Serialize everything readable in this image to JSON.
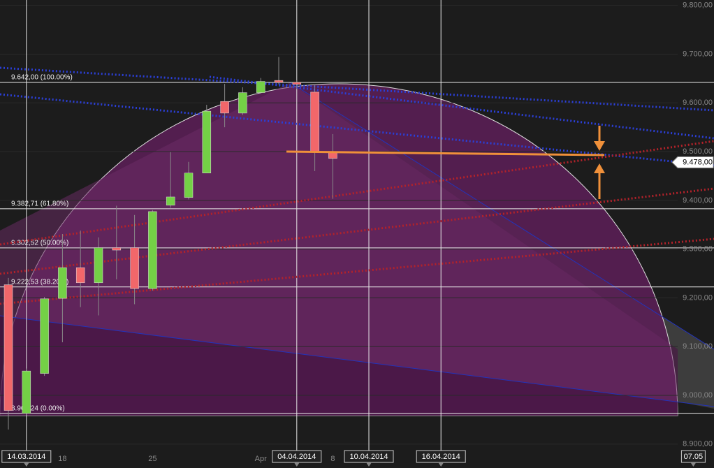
{
  "chart_data": {
    "type": "candlestick",
    "categories": [
      null,
      "14.03.2014",
      null,
      "18",
      null,
      null,
      null,
      null,
      "25",
      null,
      null,
      null,
      null,
      null,
      "Apr",
      null,
      "04.04.2014",
      null,
      "8",
      null,
      "10.04.2014",
      null,
      null,
      null,
      "16.04.2014",
      null,
      null,
      null,
      null,
      null,
      null,
      null,
      null,
      null,
      null,
      null,
      null,
      null,
      "07.05"
    ],
    "open": [
      9227,
      8963,
      9045,
      9199,
      9262,
      9231,
      9303,
      9303,
      9219,
      9390,
      9406,
      9456,
      9603,
      9579,
      9621,
      9646,
      9642,
      9622,
      9500,
      null,
      null,
      null,
      null,
      null,
      null,
      null,
      null,
      null,
      null,
      null,
      null,
      null,
      null,
      null,
      null,
      null,
      null,
      null,
      null
    ],
    "high": [
      9241,
      9055,
      9202,
      9331,
      9338,
      9324,
      9389,
      9370,
      9380,
      9499,
      9479,
      9596,
      9639,
      9632,
      9651,
      9694,
      9646,
      9636,
      9536,
      null,
      null,
      null,
      null,
      null,
      null,
      null,
      null,
      null,
      null,
      null,
      null,
      null,
      null,
      null,
      null,
      null,
      null,
      null,
      null
    ],
    "low": [
      8930,
      8959,
      9040,
      9109,
      9181,
      9164,
      9238,
      9187,
      9215,
      9385,
      9402,
      9456,
      9550,
      9575,
      9619,
      9638,
      9628,
      9460,
      9403,
      null,
      null,
      null,
      null,
      null,
      null,
      null,
      null,
      null,
      null,
      null,
      null,
      null,
      null,
      null,
      null,
      null,
      null,
      null,
      null
    ],
    "close": [
      8969,
      9050,
      9198,
      9262,
      9231,
      9303,
      9298,
      9219,
      9377,
      9407,
      9456,
      9583,
      9579,
      9621,
      9644,
      9642,
      9638,
      9500,
      9486,
      null,
      null,
      null,
      null,
      null,
      null,
      null,
      null,
      null,
      null,
      null,
      null,
      null,
      null,
      null,
      null,
      null,
      null,
      null,
      null
    ],
    "up_color": "#74d046",
    "down_color": "#f2676a",
    "ylim": [
      8851,
      9811
    ],
    "yticks": [
      {
        "value": 8900,
        "label": "8.900,00"
      },
      {
        "value": 9000,
        "label": "9.000,00"
      },
      {
        "value": 9100,
        "label": "9.100,00"
      },
      {
        "value": 9200,
        "label": "9.200,00"
      },
      {
        "value": 9300,
        "label": "9.300,00"
      },
      {
        "value": 9400,
        "label": "9.400,00"
      },
      {
        "value": 9500,
        "label": "9.500,00"
      },
      {
        "value": 9600,
        "label": "9.600,00"
      },
      {
        "value": 9700,
        "label": "9.700,00"
      },
      {
        "value": 9800,
        "label": "9.800,00"
      }
    ],
    "fib_levels": [
      {
        "value": 9642,
        "label": "9.642,00 (100.00%)"
      },
      {
        "value": 9382.71,
        "label": "9.382,71 (61.80%)"
      },
      {
        "value": 9302.52,
        "label": "9.302,52 (50.00%)"
      },
      {
        "value": 9222.53,
        "label": "9.222,53 (38.20%)"
      },
      {
        "value": 8963.24,
        "label": "8.963,24 (0.00%)"
      }
    ],
    "last_price": {
      "value": 9478,
      "label": "9.478,00"
    }
  }
}
